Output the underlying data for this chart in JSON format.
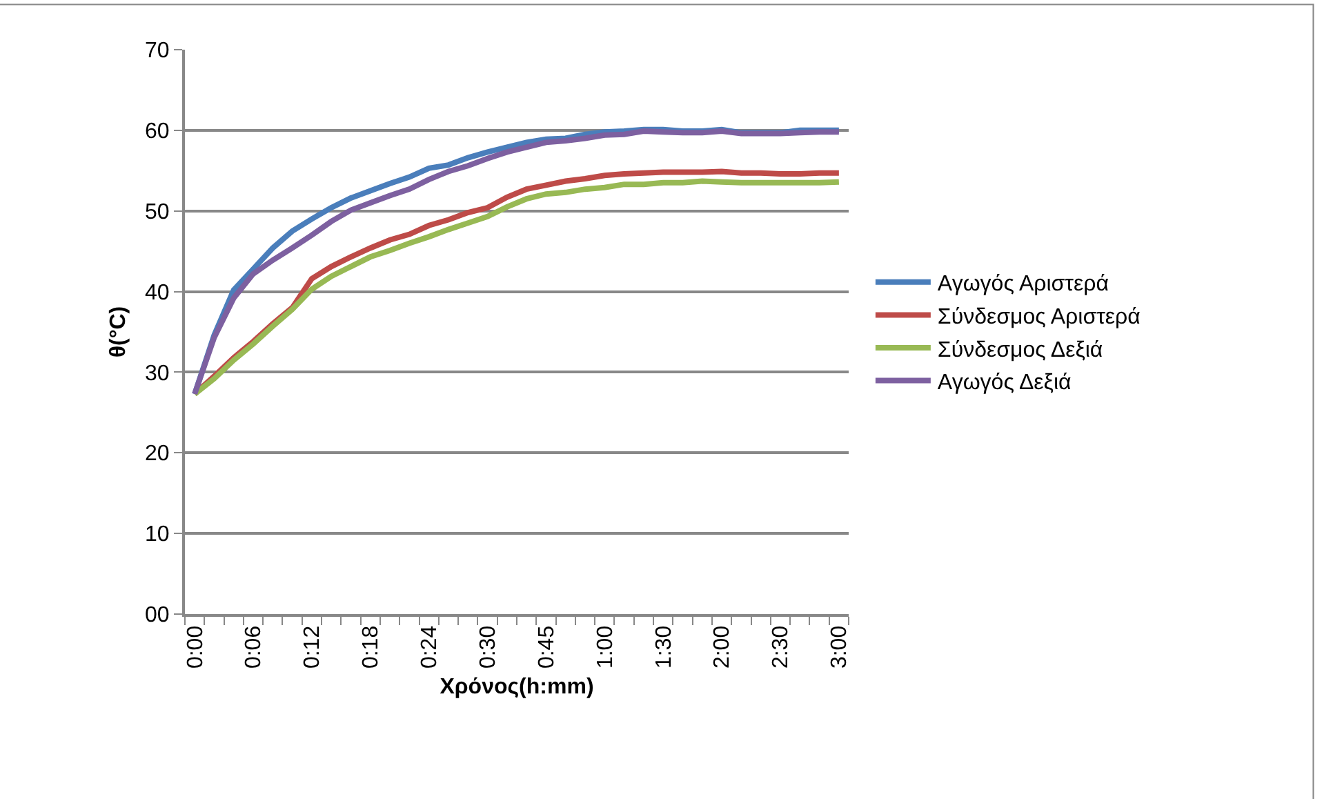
{
  "chart_data": {
    "type": "line",
    "xlabel": "Χρόνος(h:mm)",
    "ylabel": "θ(°C)",
    "categories": [
      "0:00",
      null,
      null,
      "0:06",
      null,
      null,
      "0:12",
      null,
      null,
      "0:18",
      null,
      null,
      "0:24",
      null,
      null,
      "0:30",
      null,
      null,
      "0:45",
      null,
      null,
      "1:00",
      null,
      null,
      "1:30",
      null,
      null,
      "2:00",
      null,
      null,
      "2:30",
      null,
      null,
      "3:00"
    ],
    "ylim": [
      0,
      70
    ],
    "yticks": [
      {
        "value": 0,
        "label": "00"
      },
      10,
      20,
      30,
      40,
      50,
      60,
      70
    ],
    "grid": "y",
    "legend": "right",
    "marker": "none",
    "line_style": "solid",
    "series": [
      {
        "name": "Αγωγός Αριστερά",
        "color": "#4a7ebb",
        "values": [
          27.3,
          34.6,
          40.2,
          42.8,
          45.4,
          47.5,
          49.0,
          50.4,
          51.6,
          52.5,
          53.4,
          54.2,
          55.3,
          55.7,
          56.6,
          57.3,
          57.9,
          58.5,
          58.9,
          59.0,
          59.5,
          59.8,
          59.9,
          60.1,
          60.1,
          59.9,
          59.9,
          60.1,
          59.7,
          59.7,
          59.7,
          60.0,
          60.0,
          60.0
        ]
      },
      {
        "name": "Σύνδεσμος Αριστερά",
        "color": "#be4b48",
        "values": [
          27.3,
          29.5,
          31.8,
          33.8,
          36.0,
          38.0,
          41.6,
          43.1,
          44.3,
          45.4,
          46.4,
          47.1,
          48.2,
          48.9,
          49.8,
          50.4,
          51.7,
          52.7,
          53.2,
          53.7,
          54.0,
          54.4,
          54.6,
          54.7,
          54.8,
          54.8,
          54.8,
          54.9,
          54.7,
          54.7,
          54.6,
          54.6,
          54.7,
          54.7
        ]
      },
      {
        "name": "Σύνδεσμος Δεξιά",
        "color": "#98b954",
        "values": [
          27.3,
          29.2,
          31.5,
          33.5,
          35.7,
          37.8,
          40.3,
          41.9,
          43.1,
          44.3,
          45.1,
          46.0,
          46.8,
          47.7,
          48.5,
          49.3,
          50.5,
          51.5,
          52.1,
          52.3,
          52.7,
          52.9,
          53.3,
          53.3,
          53.5,
          53.5,
          53.7,
          53.6,
          53.5,
          53.5,
          53.5,
          53.5,
          53.5,
          53.6
        ]
      },
      {
        "name": "Αγωγός Δεξιά",
        "color": "#7d60a0",
        "values": [
          27.3,
          34.3,
          39.2,
          42.2,
          43.9,
          45.4,
          47.0,
          48.7,
          50.1,
          51.0,
          51.9,
          52.7,
          53.9,
          54.9,
          55.6,
          56.5,
          57.3,
          57.9,
          58.5,
          58.7,
          59.0,
          59.4,
          59.5,
          59.9,
          59.8,
          59.7,
          59.7,
          59.9,
          59.6,
          59.6,
          59.6,
          59.7,
          59.8,
          59.8
        ]
      }
    ]
  }
}
